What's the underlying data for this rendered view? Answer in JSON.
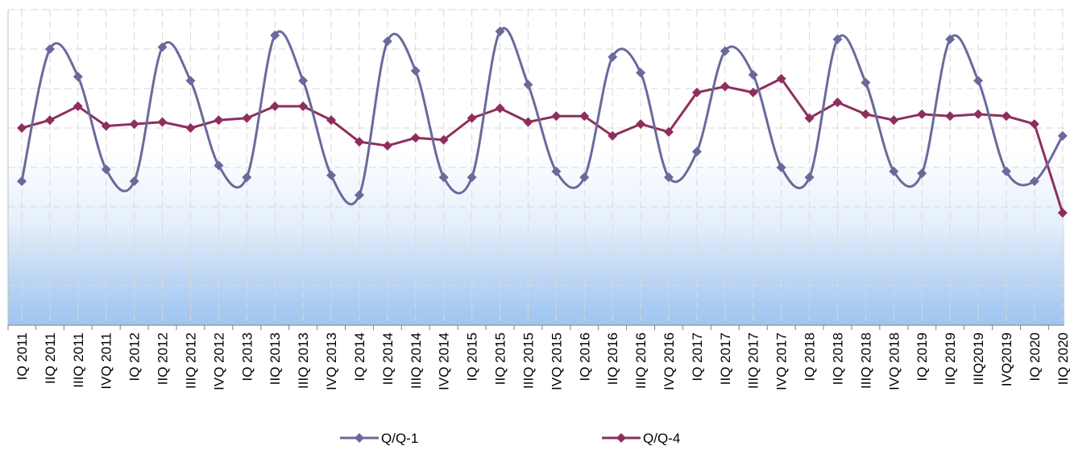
{
  "chart_data": {
    "type": "line",
    "title": "",
    "xlabel": "",
    "ylabel": "",
    "grid": true,
    "legend_position": "bottom",
    "categories": [
      "IQ 2011",
      "IIQ 2011",
      "IIIQ 2011",
      "IVQ 2011",
      "IQ 2012",
      "IIQ 2012",
      "IIIQ 2012",
      "IVQ 2012",
      "IQ 2013",
      "IIQ 2013",
      "IIIQ 2013",
      "IVQ 2013",
      "IQ 2014",
      "IIQ 2014",
      "IIIQ 2014",
      "IVQ 2014",
      "IQ 2015",
      "IIQ 2015",
      "IIIQ 2015",
      "IVQ 2015",
      "IQ 2016",
      "IIQ 2016",
      "IIIQ 2016",
      "IVQ 2016",
      "IQ 2017",
      "IIQ 2017",
      "IIIQ 2017",
      "IVQ 2017",
      "IQ 2018",
      "IIQ 2018",
      "IIIQ 2018",
      "IVQ 2018",
      "IQ 2019",
      "IIQ 2019",
      "IIIQ2019",
      "IVQ2019",
      "IQ 2020",
      "IIQ 2020"
    ],
    "ylim": [
      -8,
      8
    ],
    "y_gridlines": [
      -8,
      -6,
      -4,
      -2,
      0,
      2,
      4,
      6,
      8
    ],
    "series": [
      {
        "name": "Q/Q-1",
        "color": "#696A9B",
        "marker": "diamond",
        "smooth": true,
        "values": [
          -0.7,
          6.0,
          4.6,
          -0.1,
          -0.7,
          6.1,
          4.4,
          0.1,
          -0.5,
          6.7,
          4.4,
          -0.4,
          -1.4,
          6.4,
          4.9,
          -0.5,
          -0.5,
          6.9,
          4.2,
          -0.2,
          -0.5,
          5.6,
          4.8,
          -0.5,
          0.8,
          5.9,
          4.7,
          0.0,
          -0.5,
          6.5,
          4.3,
          -0.2,
          -0.3,
          6.5,
          4.4,
          -0.2,
          -0.7,
          1.6
        ]
      },
      {
        "name": "Q/Q-4",
        "color": "#8E2E5E",
        "marker": "diamond",
        "smooth": false,
        "values": [
          2.0,
          2.4,
          3.1,
          2.1,
          2.2,
          2.3,
          2.0,
          2.4,
          2.5,
          3.1,
          3.1,
          2.4,
          1.3,
          1.1,
          1.5,
          1.4,
          2.5,
          3.0,
          2.3,
          2.6,
          2.6,
          1.6,
          2.2,
          1.8,
          3.8,
          4.1,
          3.8,
          4.5,
          2.5,
          3.3,
          2.7,
          2.4,
          2.7,
          2.6,
          2.7,
          2.6,
          2.2,
          -2.3
        ]
      }
    ]
  }
}
